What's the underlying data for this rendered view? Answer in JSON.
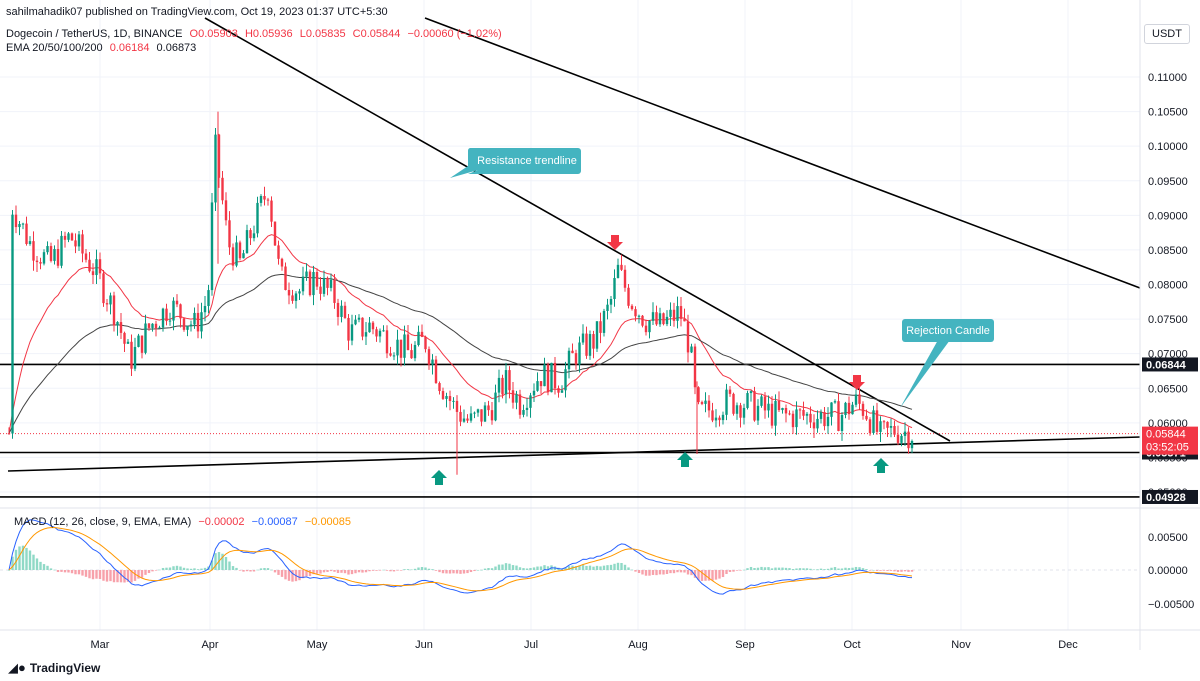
{
  "header": {
    "published": "sahilmahadik07 published on TradingView.com, Oct 19, 2023 01:37 UTC+5:30",
    "symbol": "Dogecoin / TetherUS, 1D, BINANCE",
    "o": "O0.05903",
    "h": "H0.05936",
    "l": "L0.05835",
    "c": "C0.05844",
    "chg": "−0.00060 (−1.02%)",
    "ema_label": "EMA 20/50/100/200",
    "ema1": "0.06184",
    "ema2": "0.06873"
  },
  "currency_button": "USDT",
  "brand": "TradingView",
  "macd_legend": {
    "label": "MACD (12, 26, close, 9, EMA, EMA)",
    "v1": "−0.00002",
    "v2": "−0.00087",
    "v3": "−0.00085"
  },
  "colors": {
    "up": "#089981",
    "down": "#f23645",
    "ema50": "#f23645",
    "ema200": "#444444",
    "macd": "#2962ff",
    "signal": "#ff9800",
    "annot": "#44b4c0"
  },
  "chart_data": {
    "type": "candlestick",
    "price_axis": {
      "ticks": [
        "0.11000",
        "0.10500",
        "0.10000",
        "0.09500",
        "0.09000",
        "0.08500",
        "0.08000",
        "0.07500",
        "0.07000",
        "0.06500",
        "0.06000",
        "0.05500",
        "0.05000"
      ],
      "range": [
        0.0485,
        0.1155
      ]
    },
    "x_axis": {
      "ticks": [
        "Mar",
        "Apr",
        "May",
        "Jun",
        "Jul",
        "Aug",
        "Sep",
        "Oct",
        "Nov",
        "Dec"
      ]
    },
    "horizontal_levels": [
      {
        "value": 0.06844,
        "label": "0.06844"
      },
      {
        "value": 0.05571,
        "label": "0.05571"
      },
      {
        "value": 0.04928,
        "label": "0.04928"
      }
    ],
    "last_price": {
      "value": 0.05844,
      "label": "0.05844",
      "countdown": "03:52:05"
    },
    "annotations": [
      "Resistance trendline",
      "Rejection Candle"
    ],
    "ema_levels": [
      "0.06184",
      "0.06873"
    ],
    "macd_axis": {
      "ticks": [
        "0.00500",
        "0.00000",
        "−0.00500"
      ]
    }
  }
}
